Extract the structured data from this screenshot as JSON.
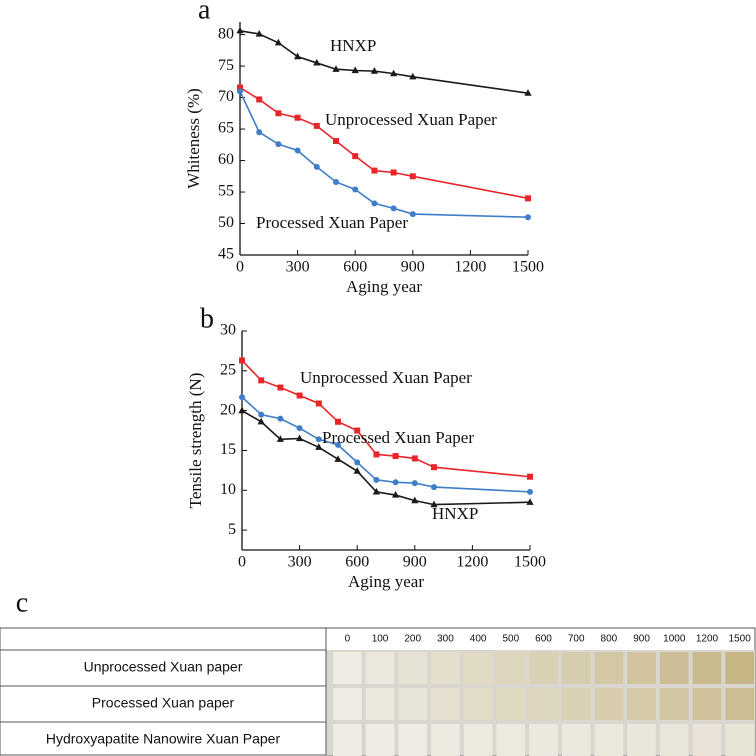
{
  "chart_data": [
    {
      "type": "line",
      "panel": "a",
      "xlabel": "Aging year",
      "ylabel": "Whiteness (%)",
      "x": [
        0,
        100,
        200,
        300,
        400,
        500,
        600,
        700,
        800,
        900,
        1500
      ],
      "xlim": [
        0,
        1500
      ],
      "xticks": [
        0,
        300,
        600,
        900,
        1200,
        1500
      ],
      "ylim": [
        45,
        82
      ],
      "yticks": [
        45,
        50,
        55,
        60,
        65,
        70,
        75,
        80
      ],
      "series": [
        {
          "name": "HNXP",
          "color": "#1a1a1a",
          "marker": "triangle",
          "values": [
            80.6,
            80.1,
            78.7,
            76.5,
            75.5,
            74.5,
            74.3,
            74.2,
            73.8,
            73.3,
            70.7
          ]
        },
        {
          "name": "Unprocessed Xuan Paper",
          "color": "#e8262a",
          "marker": "square",
          "values": [
            71.6,
            69.7,
            67.5,
            66.8,
            65.5,
            63.1,
            60.7,
            58.4,
            58.1,
            57.5,
            54.0
          ]
        },
        {
          "name": "Processed Xuan Paper",
          "color": "#3f7dc8",
          "marker": "circle",
          "values": [
            71.0,
            64.5,
            62.6,
            61.6,
            59.0,
            56.6,
            55.4,
            53.2,
            52.4,
            51.5,
            51.0
          ]
        }
      ]
    },
    {
      "type": "line",
      "panel": "b",
      "xlabel": "Aging year",
      "ylabel": "Tensile strength (N)",
      "x": [
        0,
        100,
        200,
        300,
        400,
        500,
        600,
        700,
        800,
        900,
        1000,
        1500
      ],
      "xlim": [
        0,
        1500
      ],
      "xticks": [
        0,
        300,
        600,
        900,
        1200,
        1500
      ],
      "ylim": [
        2.5,
        30
      ],
      "yticks": [
        5,
        10,
        15,
        20,
        25,
        30
      ],
      "series": [
        {
          "name": "Unprocessed Xuan Paper",
          "color": "#e8262a",
          "marker": "square",
          "values": [
            26.3,
            23.8,
            22.9,
            21.9,
            20.9,
            18.6,
            17.5,
            14.5,
            14.3,
            14.0,
            12.9,
            11.7
          ]
        },
        {
          "name": "Processed Xuan Paper",
          "color": "#3f7dc8",
          "marker": "circle",
          "values": [
            21.7,
            19.5,
            19.0,
            17.8,
            16.4,
            15.7,
            13.5,
            11.3,
            11.0,
            10.9,
            10.4,
            9.8
          ]
        },
        {
          "name": "HNXP",
          "color": "#1a1a1a",
          "marker": "triangle",
          "values": [
            20.0,
            18.6,
            16.4,
            16.5,
            15.4,
            13.9,
            12.4,
            9.8,
            9.4,
            8.7,
            8.2,
            8.5
          ]
        }
      ]
    }
  ],
  "panel_c": {
    "label": "c",
    "columns": [
      "0",
      "100",
      "200",
      "300",
      "400",
      "500",
      "600",
      "700",
      "800",
      "900",
      "1000",
      "1200",
      "1500"
    ],
    "rows": [
      "Unprocessed Xuan paper",
      "Processed Xuan paper",
      "Hydroxyapatite Nanowire Xuan Paper"
    ]
  }
}
